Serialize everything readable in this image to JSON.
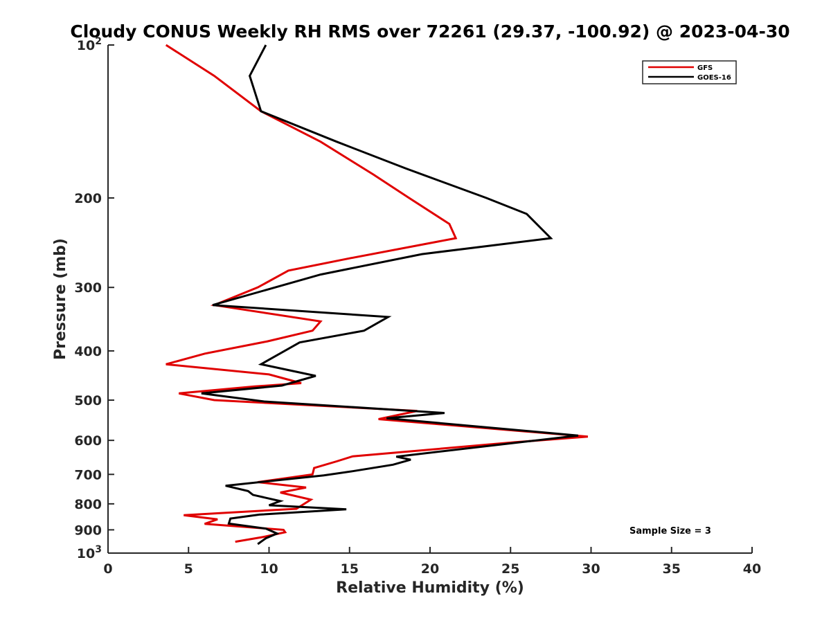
{
  "chart_data": {
    "type": "line",
    "title": "Cloudy CONUS Weekly RH RMS over 72261 (29.37, -100.92) @ 2023-04-30",
    "xlabel": "Relative Humidity (%)",
    "ylabel": "Pressure (mb)",
    "xlim": [
      0,
      40
    ],
    "ylim": [
      100,
      1000
    ],
    "yscale": "log",
    "y_reversed": true,
    "x_ticks": [
      "0",
      "5",
      "10",
      "15",
      "20",
      "25",
      "30",
      "35",
      "40"
    ],
    "y_ticks": [
      {
        "value": 100,
        "base": "10",
        "exp": "2"
      },
      {
        "value": 200,
        "label": "200"
      },
      {
        "value": 300,
        "label": "300"
      },
      {
        "value": 400,
        "label": "400"
      },
      {
        "value": 500,
        "label": "500"
      },
      {
        "value": 600,
        "label": "600"
      },
      {
        "value": 700,
        "label": "700"
      },
      {
        "value": 800,
        "label": "800"
      },
      {
        "value": 900,
        "label": "900"
      },
      {
        "value": 1000,
        "base": "10",
        "exp": "3"
      }
    ],
    "grid": false,
    "legend_position": "top-right",
    "annotation": "Sample Size = 3",
    "series": [
      {
        "name": "GFS",
        "color": "#e00000",
        "points": [
          [
            3.6,
            100
          ],
          [
            6.6,
            115
          ],
          [
            9.5,
            135
          ],
          [
            13.2,
            155
          ],
          [
            16.5,
            180
          ],
          [
            18.7,
            200
          ],
          [
            21.2,
            225
          ],
          [
            21.6,
            240
          ],
          [
            15.0,
            263
          ],
          [
            11.2,
            278
          ],
          [
            9.3,
            300
          ],
          [
            6.6,
            325
          ],
          [
            13.2,
            350
          ],
          [
            12.7,
            365
          ],
          [
            9.9,
            383
          ],
          [
            6.0,
            405
          ],
          [
            3.6,
            425
          ],
          [
            10.0,
            445
          ],
          [
            12.0,
            463
          ],
          [
            9.1,
            470
          ],
          [
            4.4,
            485
          ],
          [
            6.6,
            500
          ],
          [
            19.2,
            525
          ],
          [
            16.8,
            545
          ],
          [
            29.8,
            590
          ],
          [
            25.3,
            605
          ],
          [
            15.2,
            645
          ],
          [
            14.2,
            660
          ],
          [
            12.8,
            680
          ],
          [
            12.7,
            700
          ],
          [
            9.3,
            725
          ],
          [
            12.3,
            743
          ],
          [
            10.7,
            760
          ],
          [
            12.6,
            785
          ],
          [
            11.7,
            818
          ],
          [
            4.7,
            842
          ],
          [
            6.8,
            858
          ],
          [
            6.0,
            876
          ],
          [
            10.9,
            900
          ],
          [
            11.0,
            910
          ],
          [
            9.6,
            930
          ],
          [
            7.9,
            950
          ]
        ]
      },
      {
        "name": "GOES-16",
        "color": "#000000",
        "points": [
          [
            9.8,
            100
          ],
          [
            8.8,
            115
          ],
          [
            9.5,
            135
          ],
          [
            14.2,
            155
          ],
          [
            18.5,
            175
          ],
          [
            23.5,
            200
          ],
          [
            26.0,
            215
          ],
          [
            27.5,
            240
          ],
          [
            19.5,
            258
          ],
          [
            13.2,
            283
          ],
          [
            6.5,
            325
          ],
          [
            17.4,
            343
          ],
          [
            15.9,
            365
          ],
          [
            11.9,
            385
          ],
          [
            9.5,
            425
          ],
          [
            12.9,
            448
          ],
          [
            10.8,
            468
          ],
          [
            5.8,
            485
          ],
          [
            9.7,
            503
          ],
          [
            20.9,
            530
          ],
          [
            17.3,
            543
          ],
          [
            29.2,
            587
          ],
          [
            17.9,
            646
          ],
          [
            18.8,
            655
          ],
          [
            17.7,
            670
          ],
          [
            15.2,
            690
          ],
          [
            13.4,
            703
          ],
          [
            7.3,
            737
          ],
          [
            8.7,
            755
          ],
          [
            9.0,
            768
          ],
          [
            10.7,
            790
          ],
          [
            10.0,
            805
          ],
          [
            14.8,
            820
          ],
          [
            9.4,
            840
          ],
          [
            7.6,
            855
          ],
          [
            7.5,
            875
          ],
          [
            9.8,
            895
          ],
          [
            10.5,
            915
          ],
          [
            9.8,
            935
          ],
          [
            9.3,
            960
          ]
        ]
      }
    ]
  }
}
